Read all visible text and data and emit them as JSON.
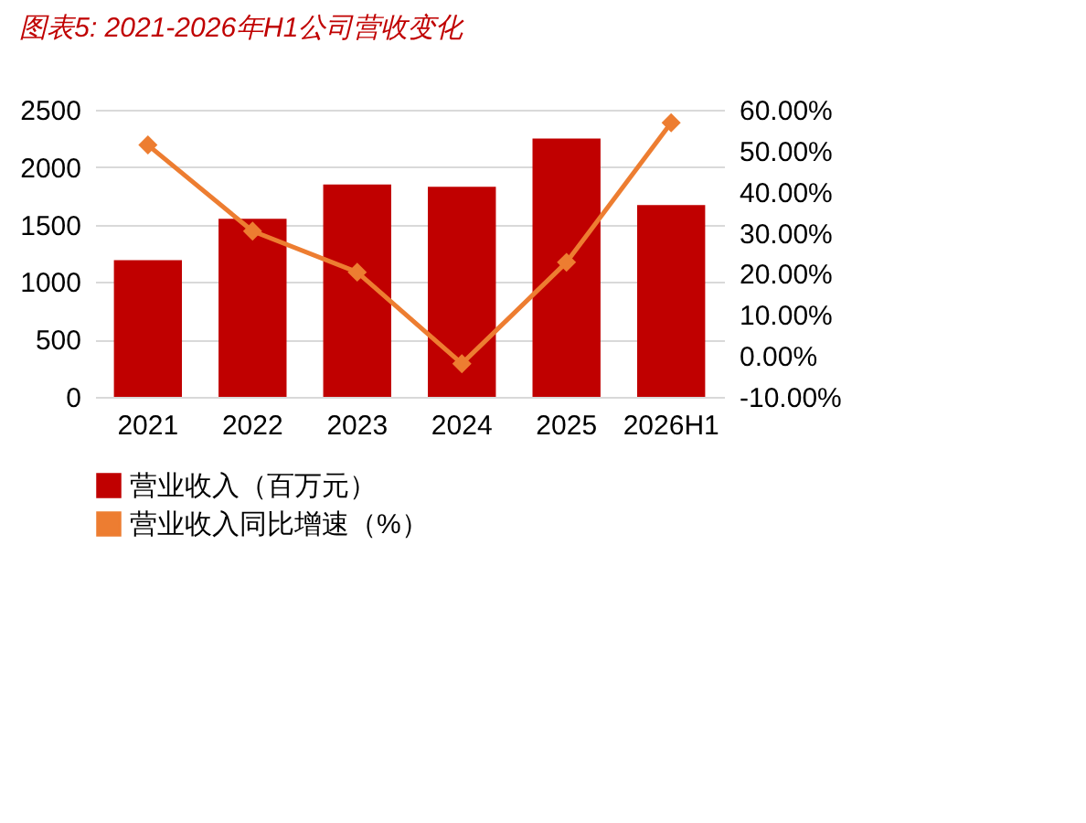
{
  "chart_data": {
    "type": "bar",
    "title": "图表5: 2021-2026年H1公司营收变化",
    "categories": [
      "2021",
      "2022",
      "2023",
      "2024",
      "2025",
      "2026H1"
    ],
    "series": [
      {
        "name": "营业收入（百万元）",
        "color": "#c00000",
        "values": [
          1190,
          1550,
          1850,
          1830,
          2250,
          1670
        ]
      },
      {
        "name": "营业收入同比增速（%）",
        "type": "line",
        "axis": "y2",
        "color": "#ed7d31",
        "marker": "diamond",
        "values": [
          51.4,
          30.4,
          20.4,
          -1.9,
          22.8,
          56.8
        ]
      }
    ],
    "ylim": [
      0,
      2500
    ],
    "yticks": [
      0,
      500,
      1000,
      1500,
      2000,
      2500
    ],
    "y2lim": [
      -10,
      60
    ],
    "y2ticks": [
      {
        "value": -10,
        "label": "-10.00%"
      },
      {
        "value": 0,
        "label": "0.00%"
      },
      {
        "value": 10,
        "label": "10.00%"
      },
      {
        "value": 20,
        "label": "20.00%"
      },
      {
        "value": 30,
        "label": "30.00%"
      },
      {
        "value": 40,
        "label": "40.00%"
      },
      {
        "value": 50,
        "label": "50.00%"
      },
      {
        "value": 60,
        "label": "60.00%"
      }
    ],
    "grid": "y",
    "legend": "bottom"
  }
}
